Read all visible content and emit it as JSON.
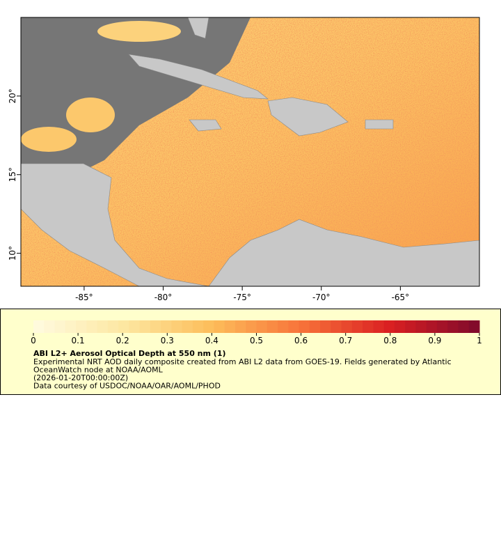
{
  "map": {
    "xlim": [
      -89,
      -60
    ],
    "ylim": [
      7.9,
      25
    ],
    "xticks": [
      {
        "value": -85,
        "label": "-85°"
      },
      {
        "value": -80,
        "label": "-80°"
      },
      {
        "value": -75,
        "label": "-75°"
      },
      {
        "value": -70,
        "label": "-70°"
      },
      {
        "value": -65,
        "label": "-65°"
      }
    ],
    "yticks": [
      {
        "value": 10,
        "label": "10°"
      },
      {
        "value": 15,
        "label": "15°"
      },
      {
        "value": 20,
        "label": "20°"
      }
    ]
  },
  "legend": {
    "colorbar": {
      "lim": [
        0,
        1
      ],
      "ticks": [
        0,
        0.1,
        0.2,
        0.3,
        0.4,
        0.5,
        0.6,
        0.7,
        0.8,
        0.9,
        1
      ],
      "colors": [
        "#fffbe0",
        "#fde7a2",
        "#fdbd5a",
        "#f7733a",
        "#da1f22",
        "#7d0a2c"
      ]
    },
    "title": "ABI L2+ Aerosol Optical Depth at 550 nm (1)",
    "lines": [
      "Experimental NRT AOD daily composite created from ABI L2 data from GOES-19. Fields generated by Atlantic",
      "OceanWatch node at NOAA/AOML",
      "(2026-01-20T00:00:00Z)",
      "Data courtesy of USDOC/NOAA/OAR/AOML/PHOD"
    ]
  }
}
